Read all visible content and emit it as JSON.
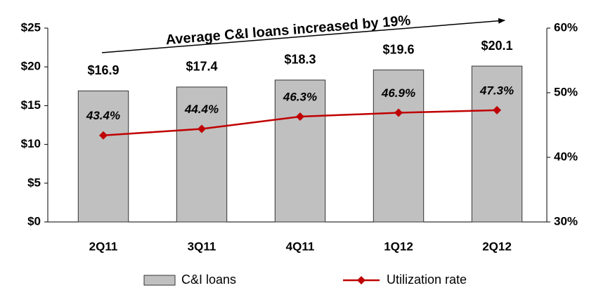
{
  "chart_data": {
    "type": "combo",
    "annotation": "Average C&I loans increased by 19%",
    "categories": [
      "2Q11",
      "3Q11",
      "4Q11",
      "1Q12",
      "2Q12"
    ],
    "series": [
      {
        "name": "C&I loans",
        "type": "bar",
        "color": "#c0c0c0",
        "values": [
          16.9,
          17.4,
          18.3,
          19.6,
          20.1
        ],
        "value_labels": [
          "$16.9",
          "$17.4",
          "$18.3",
          "$19.6",
          "$20.1"
        ]
      },
      {
        "name": "Utilization rate",
        "type": "line",
        "axis": "y2",
        "color": "#c00000",
        "values": [
          43.4,
          44.4,
          46.3,
          46.9,
          47.3
        ],
        "value_labels": [
          "43.4%",
          "44.4%",
          "46.3%",
          "46.9%",
          "47.3%"
        ]
      }
    ],
    "ylim": [
      0,
      25
    ],
    "yticks": [
      {
        "value": 0,
        "label": "$0"
      },
      {
        "value": 5,
        "label": "$5"
      },
      {
        "value": 10,
        "label": "$10"
      },
      {
        "value": 15,
        "label": "$15"
      },
      {
        "value": 20,
        "label": "$20"
      },
      {
        "value": 25,
        "label": "$25"
      }
    ],
    "y2lim": [
      30,
      60
    ],
    "y2ticks": [
      {
        "value": 30,
        "label": "30%"
      },
      {
        "value": 40,
        "label": "40%"
      },
      {
        "value": 50,
        "label": "50%"
      },
      {
        "value": 60,
        "label": "60%"
      }
    ],
    "grid": false
  }
}
